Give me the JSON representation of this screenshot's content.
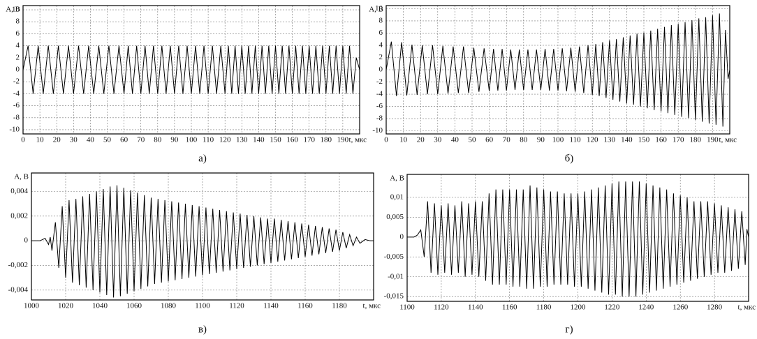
{
  "chart_data": [
    {
      "type": "line",
      "caption": "а)",
      "ylabel": "А, В",
      "xlabel": "t, мкс",
      "color": "#000000",
      "grid": true,
      "xlim": [
        0,
        200
      ],
      "xticks": [
        0,
        10,
        20,
        30,
        40,
        50,
        60,
        70,
        80,
        90,
        100,
        110,
        120,
        130,
        140,
        150,
        160,
        170,
        180,
        190
      ],
      "ylim": [
        -10.7,
        10.7
      ],
      "yticks": [
        -10,
        -8,
        -6,
        -4,
        -2,
        0,
        2,
        4,
        6,
        8,
        10
      ],
      "x": [
        0,
        3,
        6,
        9,
        12,
        15,
        18,
        21,
        24,
        27,
        30,
        33,
        36,
        39,
        42,
        45,
        48,
        51,
        54,
        57,
        60,
        62.5,
        65,
        67.5,
        70,
        72.5,
        75,
        77.5,
        80,
        82.5,
        85,
        87.5,
        90,
        92.5,
        95,
        97.5,
        100,
        102.5,
        105,
        107.5,
        110,
        112.5,
        115,
        117.5,
        120,
        122,
        124,
        126,
        128,
        130,
        132,
        134,
        136,
        138,
        140,
        142,
        144,
        146,
        148,
        150,
        152,
        154,
        156,
        158,
        160,
        162,
        164,
        166,
        168,
        170,
        172,
        174,
        176,
        178,
        180,
        182,
        184,
        186,
        188,
        190,
        192,
        194,
        196,
        198,
        200
      ],
      "values": [
        0,
        4,
        -4,
        4,
        -4,
        4,
        -4,
        4,
        -4,
        4,
        -4,
        4,
        -4,
        4,
        -4,
        4,
        -4,
        4,
        -4,
        4,
        -4,
        4,
        -4,
        4,
        -4,
        4,
        -4,
        4,
        -4,
        4,
        -4,
        4,
        -4,
        4,
        -4,
        4,
        -4,
        4,
        -4,
        4,
        -4,
        4,
        -4,
        4,
        -4,
        4,
        -4,
        4,
        -4,
        4,
        -4,
        4,
        -4,
        4,
        -4,
        4,
        -4,
        4,
        -4,
        4,
        -4,
        4,
        -4,
        4,
        -4,
        4,
        -4,
        4,
        -4,
        4,
        -4,
        4,
        -4,
        4,
        -4,
        4,
        -4,
        4,
        -4,
        4,
        -4,
        4,
        -4,
        2,
        0
      ]
    },
    {
      "type": "line",
      "caption": "б)",
      "ylabel": "А, В",
      "xlabel": "t, мкс",
      "color": "#000000",
      "grid": true,
      "xlim": [
        0,
        200
      ],
      "xticks": [
        0,
        10,
        20,
        30,
        40,
        50,
        60,
        70,
        80,
        90,
        100,
        110,
        120,
        130,
        140,
        150,
        160,
        170,
        180,
        190
      ],
      "ylim": [
        -10.5,
        10.5
      ],
      "yticks": [
        -10,
        -8,
        -6,
        -4,
        -2,
        0,
        2,
        4,
        6,
        8,
        10
      ],
      "x": [
        0,
        3,
        6,
        9,
        12,
        15,
        18,
        21,
        24,
        27,
        30,
        33,
        36,
        39,
        42,
        45,
        48,
        51,
        54,
        57,
        60,
        62.5,
        65,
        67.5,
        70,
        72.5,
        75,
        77.5,
        80,
        82.5,
        85,
        87.5,
        90,
        92.5,
        95,
        97.5,
        100,
        102.5,
        105,
        107.5,
        110,
        112.5,
        115,
        117.5,
        120,
        122,
        124,
        126,
        128,
        130,
        132,
        134,
        136,
        138,
        140,
        142,
        144,
        146,
        148,
        150,
        152,
        154,
        156,
        158,
        160,
        162,
        164,
        166,
        168,
        170,
        172,
        174,
        176,
        178,
        180,
        182,
        184,
        186,
        188,
        190,
        192,
        194,
        196,
        197.5,
        199,
        200
      ],
      "values": [
        0,
        4.6,
        -4.3,
        4.5,
        -4.2,
        4.1,
        -4.1,
        4,
        -4,
        4,
        -4,
        3.9,
        -3.9,
        3.8,
        -3.8,
        3.8,
        -3.8,
        3.6,
        -3.6,
        3.5,
        -3.5,
        3.4,
        -3.4,
        3.4,
        -3.4,
        3.3,
        -3.3,
        3.3,
        -3.3,
        3.3,
        -3.3,
        3.3,
        -3.3,
        3.4,
        -3.4,
        3.4,
        -3.4,
        3.5,
        -3.5,
        3.6,
        -3.6,
        3.8,
        -3.8,
        4,
        -4.1,
        4.2,
        -4.3,
        4.5,
        -4.6,
        4.8,
        -4.9,
        5.0,
        -5.2,
        5.3,
        -5.5,
        5.6,
        -5.7,
        5.9,
        -6.0,
        6.1,
        -6.3,
        6.4,
        -6.6,
        6.7,
        -6.8,
        7.0,
        -7.1,
        7.3,
        -7.4,
        7.5,
        -7.7,
        7.8,
        -7.9,
        8.1,
        -8.2,
        8.4,
        -8.5,
        8.6,
        -8.8,
        8.9,
        -9.0,
        9.2,
        -9.3,
        6.5,
        -1.5,
        0
      ]
    },
    {
      "type": "line",
      "caption": "в)",
      "ylabel": "А, В",
      "xlabel": "t, мкс",
      "color": "#000000",
      "grid": true,
      "xlim": [
        1000,
        1200
      ],
      "xticks": [
        1000,
        1020,
        1040,
        1060,
        1080,
        1100,
        1120,
        1140,
        1160,
        1180
      ],
      "ylim": [
        -0.0048,
        0.0055
      ],
      "yticks": [
        {
          "value": -0.004,
          "label": "-0,004"
        },
        {
          "value": -0.002,
          "label": "-0,002"
        },
        0,
        {
          "value": 0.002,
          "label": "0,002"
        },
        {
          "value": 0.004,
          "label": "0,004"
        }
      ],
      "x": [
        1000,
        1005,
        1008,
        1010,
        1011,
        1012,
        1014,
        1016,
        1018,
        1020,
        1022,
        1024,
        1026,
        1028,
        1030,
        1032,
        1034,
        1036,
        1038,
        1040,
        1042,
        1044,
        1046,
        1048,
        1050,
        1052,
        1054,
        1056,
        1058,
        1060,
        1062,
        1064,
        1066,
        1068,
        1070,
        1072,
        1074,
        1076,
        1078,
        1080,
        1082,
        1084,
        1086,
        1088,
        1090,
        1092,
        1094,
        1096,
        1098,
        1100,
        1102,
        1104,
        1106,
        1108,
        1110,
        1112,
        1114,
        1116,
        1118,
        1120,
        1122,
        1124,
        1126,
        1128,
        1130,
        1132,
        1134,
        1136,
        1138,
        1140,
        1142,
        1144,
        1146,
        1148,
        1150,
        1152,
        1154,
        1156,
        1158,
        1160,
        1162,
        1164,
        1166,
        1168,
        1170,
        1172,
        1174,
        1176,
        1178,
        1180,
        1182,
        1184,
        1186,
        1188,
        1190,
        1192,
        1195,
        1198,
        1200
      ],
      "values": [
        0,
        0,
        0.0002,
        -0.0003,
        0.0003,
        -0.0008,
        0.0015,
        -0.0022,
        0.0028,
        -0.003,
        0.0033,
        -0.0034,
        0.0034,
        -0.0036,
        0.0036,
        -0.0038,
        0.0038,
        -0.004,
        0.004,
        -0.0042,
        0.0042,
        -0.0044,
        0.0044,
        -0.0046,
        0.0045,
        -0.0045,
        0.0043,
        -0.0043,
        0.0041,
        -0.0041,
        0.0039,
        -0.0039,
        0.0037,
        -0.0037,
        0.0035,
        -0.0035,
        0.0034,
        -0.0034,
        0.0033,
        -0.0033,
        0.0032,
        -0.0032,
        0.0031,
        -0.0031,
        0.003,
        -0.003,
        0.0029,
        -0.0029,
        0.0028,
        -0.0028,
        0.0027,
        -0.0027,
        0.0026,
        -0.0026,
        0.0025,
        -0.0025,
        0.0024,
        -0.0024,
        0.0023,
        -0.0023,
        0.0022,
        -0.0022,
        0.0021,
        -0.0021,
        0.002,
        -0.002,
        0.0019,
        -0.0019,
        0.0018,
        -0.0018,
        0.0018,
        -0.0017,
        0.0017,
        -0.0016,
        0.0016,
        -0.0015,
        0.0015,
        -0.0014,
        0.0014,
        -0.0013,
        0.0013,
        -0.0012,
        0.0012,
        -0.0011,
        0.0011,
        -0.001,
        0.001,
        -0.0009,
        0.0009,
        -0.0008,
        0.0007,
        -0.0006,
        0.0005,
        -0.0004,
        0.0003,
        -0.0002,
        0.0001,
        0,
        0
      ]
    },
    {
      "type": "line",
      "caption": "г)",
      "ylabel": "А, В",
      "xlabel": "t, мкс",
      "color": "#000000",
      "grid": true,
      "xlim": [
        1100,
        1300
      ],
      "xticks": [
        1100,
        1120,
        1140,
        1160,
        1180,
        1200,
        1220,
        1240,
        1260,
        1280
      ],
      "ylim": [
        -0.0162,
        0.0158
      ],
      "yticks": [
        {
          "value": -0.015,
          "label": "-0,015"
        },
        {
          "value": -0.01,
          "label": "-0,01"
        },
        {
          "value": -0.005,
          "label": "-0,005"
        },
        0,
        {
          "value": 0.005,
          "label": "0,005"
        },
        {
          "value": 0.01,
          "label": "0,01"
        }
      ],
      "x": [
        1100,
        1104,
        1106,
        1108,
        1110,
        1112,
        1114,
        1116,
        1118,
        1120,
        1122,
        1124,
        1126,
        1128,
        1130,
        1132,
        1134,
        1136,
        1138,
        1140,
        1142,
        1144,
        1146,
        1148,
        1150,
        1152,
        1154,
        1156,
        1158,
        1160,
        1162,
        1164,
        1166,
        1168,
        1170,
        1172,
        1174,
        1176,
        1178,
        1180,
        1182,
        1184,
        1186,
        1188,
        1190,
        1192,
        1194,
        1196,
        1198,
        1200,
        1202,
        1204,
        1206,
        1208,
        1210,
        1212,
        1214,
        1216,
        1218,
        1220,
        1222,
        1224,
        1226,
        1228,
        1230,
        1232,
        1234,
        1236,
        1238,
        1240,
        1242,
        1244,
        1246,
        1248,
        1250,
        1252,
        1254,
        1256,
        1258,
        1260,
        1262,
        1264,
        1266,
        1268,
        1270,
        1272,
        1274,
        1276,
        1278,
        1280,
        1282,
        1284,
        1286,
        1288,
        1290,
        1292,
        1294,
        1296,
        1298,
        1299,
        1300
      ],
      "values": [
        0,
        0,
        0.0005,
        0.0018,
        -0.005,
        0.009,
        -0.009,
        0.0085,
        -0.0095,
        0.008,
        -0.009,
        0.0085,
        -0.0095,
        0.008,
        -0.009,
        0.009,
        -0.01,
        0.0085,
        -0.0095,
        0.009,
        -0.01,
        0.009,
        -0.011,
        0.011,
        -0.012,
        0.012,
        -0.012,
        0.012,
        -0.012,
        0.012,
        -0.0125,
        0.012,
        -0.0125,
        0.012,
        -0.013,
        0.013,
        -0.013,
        0.0125,
        -0.0125,
        0.012,
        -0.0125,
        0.0115,
        -0.012,
        0.0115,
        -0.012,
        0.011,
        -0.012,
        0.011,
        -0.0125,
        0.011,
        -0.0125,
        0.0115,
        -0.013,
        0.012,
        -0.0135,
        0.0125,
        -0.014,
        0.013,
        -0.0145,
        0.0135,
        -0.0145,
        0.014,
        -0.015,
        0.014,
        -0.015,
        0.014,
        -0.015,
        0.014,
        -0.0145,
        0.0135,
        -0.014,
        0.013,
        -0.0135,
        0.0125,
        -0.013,
        0.012,
        -0.0125,
        0.011,
        -0.012,
        0.0105,
        -0.0115,
        0.01,
        -0.011,
        0.009,
        -0.0105,
        0.009,
        -0.01,
        0.009,
        -0.0095,
        0.0085,
        -0.009,
        0.008,
        -0.009,
        0.0075,
        -0.0085,
        0.007,
        -0.008,
        0.0065,
        -0.007,
        0.002,
        0
      ]
    }
  ]
}
